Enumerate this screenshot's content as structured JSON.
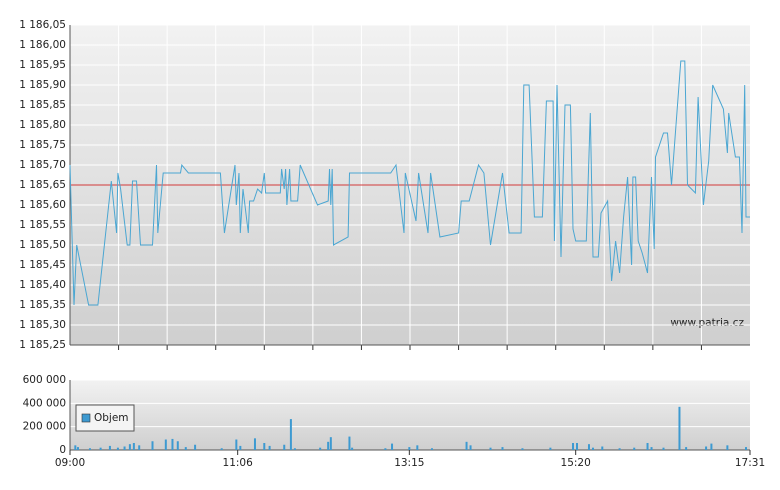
{
  "chart_data": [
    {
      "type": "line",
      "color": "#4aa6d2",
      "reference_line": 1185.65,
      "reference_color": "#d23a3a",
      "grid": true,
      "watermark": "www.patria.cz",
      "xlim": [
        "09:00",
        "17:31"
      ],
      "ylim": [
        1185.25,
        1186.05
      ],
      "yticks": [
        {
          "value": 1185.25,
          "label": "1 185,25"
        },
        {
          "value": 1185.3,
          "label": "1 185,30"
        },
        {
          "value": 1185.35,
          "label": "1 185,35"
        },
        {
          "value": 1185.4,
          "label": "1 185,40"
        },
        {
          "value": 1185.45,
          "label": "1 185,45"
        },
        {
          "value": 1185.5,
          "label": "1 185,50"
        },
        {
          "value": 1185.55,
          "label": "1 185,55"
        },
        {
          "value": 1185.6,
          "label": "1 185,60"
        },
        {
          "value": 1185.65,
          "label": "1 185,65"
        },
        {
          "value": 1185.7,
          "label": "1 185,70"
        },
        {
          "value": 1185.75,
          "label": "1 185,75"
        },
        {
          "value": 1185.8,
          "label": "1 185,80"
        },
        {
          "value": 1185.85,
          "label": "1 185,85"
        },
        {
          "value": 1185.9,
          "label": "1 185,90"
        },
        {
          "value": 1185.95,
          "label": "1 185,95"
        },
        {
          "value": 1186.0,
          "label": "1 186,00"
        },
        {
          "value": 1186.05,
          "label": "1 186,05"
        }
      ],
      "x": [
        "09:00",
        "09:03",
        "09:05",
        "09:14",
        "09:21",
        "09:31",
        "09:35",
        "09:36",
        "09:38",
        "09:43",
        "09:45",
        "09:47",
        "09:50",
        "09:53",
        "10:02",
        "10:05",
        "10:06",
        "10:10",
        "10:23",
        "10:24",
        "10:29",
        "10:53",
        "10:56",
        "11:04",
        "11:05",
        "11:07",
        "11:08",
        "11:10",
        "11:14",
        "11:15",
        "11:18",
        "11:21",
        "11:24",
        "11:26",
        "11:27",
        "11:38",
        "11:39",
        "11:41",
        "11:42",
        "11:43",
        "11:45",
        "11:46",
        "11:51",
        "11:53",
        "12:06",
        "12:14",
        "12:15",
        "12:16",
        "12:17",
        "12:18",
        "12:29",
        "12:30",
        "13:01",
        "13:05",
        "13:11",
        "13:12",
        "13:20",
        "13:22",
        "13:29",
        "13:31",
        "13:38",
        "13:52",
        "13:54",
        "14:00",
        "14:07",
        "14:11",
        "14:16",
        "14:25",
        "14:30",
        "14:39",
        "14:41",
        "14:45",
        "14:49",
        "14:55",
        "14:58",
        "15:03",
        "15:04",
        "15:06",
        "15:09",
        "15:12",
        "15:16",
        "15:18",
        "15:20",
        "15:28",
        "15:31",
        "15:33",
        "15:37",
        "15:39",
        "15:44",
        "15:47",
        "15:50",
        "15:53",
        "15:56",
        "15:59",
        "16:02",
        "16:03",
        "16:05",
        "16:07",
        "16:10",
        "16:14",
        "16:17",
        "16:19",
        "16:20",
        "16:26",
        "16:29",
        "16:32",
        "16:39",
        "16:42",
        "16:44",
        "16:50",
        "16:52",
        "16:56",
        "17:00",
        "17:03",
        "17:11",
        "17:14",
        "17:15",
        "17:20",
        "17:23",
        "17:25",
        "17:27",
        "17:28",
        "17:31"
      ],
      "values": [
        1185.7,
        1185.35,
        1185.5,
        1185.35,
        1185.35,
        1185.66,
        1185.53,
        1185.68,
        1185.64,
        1185.5,
        1185.5,
        1185.66,
        1185.66,
        1185.5,
        1185.5,
        1185.7,
        1185.53,
        1185.68,
        1185.68,
        1185.7,
        1185.68,
        1185.68,
        1185.53,
        1185.7,
        1185.6,
        1185.68,
        1185.53,
        1185.64,
        1185.53,
        1185.61,
        1185.61,
        1185.64,
        1185.63,
        1185.68,
        1185.63,
        1185.63,
        1185.69,
        1185.64,
        1185.69,
        1185.6,
        1185.69,
        1185.61,
        1185.61,
        1185.7,
        1185.6,
        1185.61,
        1185.69,
        1185.6,
        1185.69,
        1185.5,
        1185.52,
        1185.68,
        1185.68,
        1185.7,
        1185.53,
        1185.68,
        1185.56,
        1185.68,
        1185.53,
        1185.68,
        1185.52,
        1185.53,
        1185.61,
        1185.61,
        1185.7,
        1185.68,
        1185.5,
        1185.68,
        1185.53,
        1185.53,
        1185.9,
        1185.9,
        1185.57,
        1185.57,
        1185.86,
        1185.86,
        1185.51,
        1185.9,
        1185.47,
        1185.85,
        1185.85,
        1185.54,
        1185.51,
        1185.51,
        1185.83,
        1185.47,
        1185.47,
        1185.58,
        1185.61,
        1185.41,
        1185.51,
        1185.43,
        1185.57,
        1185.67,
        1185.45,
        1185.67,
        1185.67,
        1185.51,
        1185.48,
        1185.43,
        1185.67,
        1185.49,
        1185.72,
        1185.78,
        1185.78,
        1185.65,
        1185.96,
        1185.96,
        1185.65,
        1185.63,
        1185.87,
        1185.6,
        1185.71,
        1185.9,
        1185.84,
        1185.73,
        1185.83,
        1185.72,
        1185.72,
        1185.53,
        1185.9,
        1185.57,
        1185.57
      ]
    },
    {
      "type": "bar",
      "grid": true,
      "legend": "top-left",
      "xlim": [
        "09:00",
        "17:31"
      ],
      "xticks": [
        "09:00",
        "11:06",
        "13:15",
        "15:20",
        "17:31"
      ],
      "ylim": [
        0,
        600000
      ],
      "yticks": [
        0,
        {
          "value": 200000,
          "label": "200 000"
        },
        {
          "value": 400000,
          "label": "400 000"
        },
        {
          "value": 600000,
          "label": "600 000"
        }
      ],
      "x": [
        "09:04",
        "09:06",
        "09:15",
        "09:23",
        "09:30",
        "09:36",
        "09:41",
        "09:45",
        "09:48",
        "09:52",
        "10:02",
        "10:12",
        "10:17",
        "10:21",
        "10:27",
        "10:34",
        "10:54",
        "11:05",
        "11:08",
        "11:19",
        "11:26",
        "11:30",
        "11:41",
        "11:46",
        "11:49",
        "12:08",
        "12:14",
        "12:16",
        "12:30",
        "12:32",
        "12:57",
        "13:02",
        "13:15",
        "13:21",
        "13:32",
        "13:58",
        "14:01",
        "14:16",
        "14:25",
        "14:40",
        "15:01",
        "15:18",
        "15:21",
        "15:30",
        "15:33",
        "15:40",
        "15:53",
        "16:04",
        "16:14",
        "16:17",
        "16:26",
        "16:38",
        "16:43",
        "16:58",
        "17:02",
        "17:14",
        "17:28"
      ],
      "series": [
        {
          "name": "Objem",
          "color": "#3d9ad1",
          "values": [
            40000,
            25000,
            15000,
            20000,
            35000,
            20000,
            30000,
            50000,
            60000,
            40000,
            75000,
            90000,
            95000,
            75000,
            25000,
            45000,
            15000,
            90000,
            35000,
            100000,
            60000,
            35000,
            45000,
            265000,
            15000,
            20000,
            70000,
            110000,
            115000,
            20000,
            15000,
            55000,
            25000,
            40000,
            15000,
            70000,
            40000,
            20000,
            25000,
            15000,
            20000,
            60000,
            60000,
            50000,
            20000,
            30000,
            15000,
            20000,
            60000,
            25000,
            20000,
            370000,
            25000,
            30000,
            55000,
            40000,
            25000
          ]
        }
      ]
    }
  ]
}
